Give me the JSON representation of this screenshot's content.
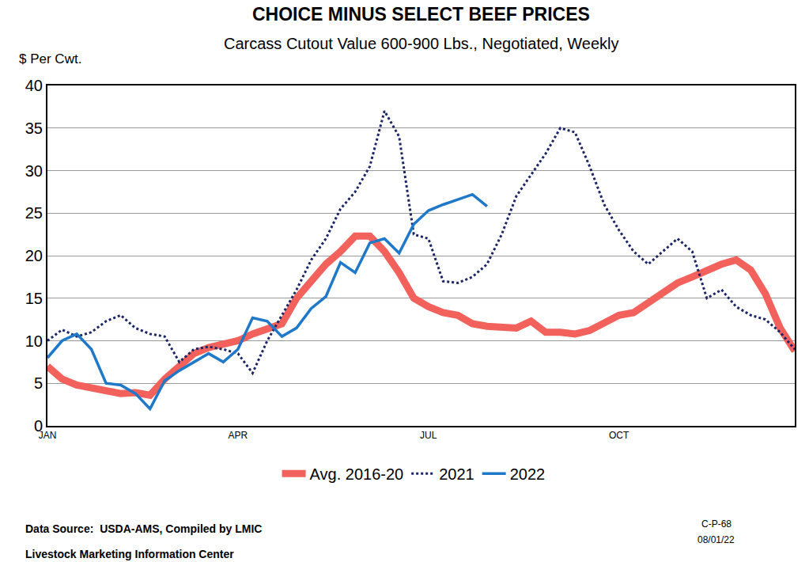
{
  "chart_data": {
    "type": "line",
    "title": "CHOICE MINUS SELECT BEEF PRICES",
    "subtitle": "Carcass Cutout Value 600-900 Lbs., Negotiated, Weekly",
    "y_label": "$ Per Cwt.",
    "annotations": [
      "Data Source:  USDA-AMS, Compiled by LMIC",
      "Livestock Marketing Information Center",
      "C-P-68",
      "08/01/22"
    ],
    "categories": [
      "JAN",
      null,
      null,
      null,
      null,
      null,
      null,
      null,
      null,
      null,
      null,
      null,
      null,
      "APR",
      null,
      null,
      null,
      null,
      null,
      null,
      null,
      null,
      null,
      null,
      null,
      null,
      "JUL",
      null,
      null,
      null,
      null,
      null,
      null,
      null,
      null,
      null,
      null,
      null,
      null,
      "OCT",
      null,
      null,
      null,
      null,
      null,
      null,
      null,
      null,
      null,
      null,
      null,
      null
    ],
    "series": [
      {
        "name": "Avg. 2016-20",
        "color": "#f2615c",
        "line_style": "solid",
        "values": [
          7.0,
          5.5,
          4.8,
          4.5,
          4.3,
          3.8,
          3.9,
          3.6,
          5.5,
          7.0,
          8.5,
          9.2,
          9.5,
          10.0,
          10.8,
          11.3,
          12.0,
          15.0,
          17.0,
          19.0,
          20.5,
          22.3,
          22.3,
          20.5,
          18.0,
          15.0,
          14.0,
          13.3,
          13.0,
          12.0,
          11.7,
          11.5,
          11.5,
          12.3,
          11.0,
          11.0,
          10.8,
          11.2,
          12.0,
          13.0,
          13.3,
          14.5,
          15.8,
          16.8,
          17.5,
          18.3,
          19.0,
          19.5,
          18.3,
          15.5,
          11.5,
          8.8
        ]
      },
      {
        "name": "2021",
        "color": "#1c2566",
        "line_style": "dot",
        "values": [
          10.0,
          11.3,
          10.5,
          11.0,
          12.3,
          13.0,
          11.5,
          10.8,
          10.5,
          7.5,
          9.0,
          9.3,
          9.0,
          8.5,
          6.2,
          10.0,
          13.0,
          16.0,
          19.5,
          22.0,
          25.5,
          27.5,
          30.5,
          37.0,
          34.0,
          22.5,
          22.0,
          17.0,
          16.8,
          17.5,
          19.0,
          22.5,
          27.0,
          29.5,
          32.0,
          35.0,
          34.5,
          30.5,
          26.0,
          23.0,
          20.5,
          19.0,
          20.5,
          22.0,
          20.5,
          15.0,
          16.0,
          14.0,
          13.0,
          12.5,
          11.0,
          9.0
        ]
      },
      {
        "name": "2022",
        "color": "#1f78c8",
        "line_style": "solid",
        "values": [
          8.0,
          10.0,
          10.8,
          9.0,
          5.0,
          4.8,
          3.8,
          2.0,
          5.3,
          6.5,
          7.5,
          8.5,
          7.5,
          9.0,
          12.7,
          12.3,
          10.5,
          11.5,
          13.8,
          15.2,
          19.2,
          18.0,
          21.5,
          22.0,
          20.3,
          23.7,
          25.3,
          26.0,
          26.6,
          27.2,
          25.8,
          null,
          null,
          null,
          null,
          null,
          null,
          null,
          null,
          null,
          null,
          null,
          null,
          null,
          null,
          null,
          null,
          null,
          null,
          null,
          null,
          null
        ]
      }
    ],
    "ylim": [
      0,
      40
    ],
    "yticks": [
      0,
      5,
      10,
      15,
      20,
      25,
      30,
      35,
      40
    ],
    "grid": true,
    "legend": "bottom"
  }
}
